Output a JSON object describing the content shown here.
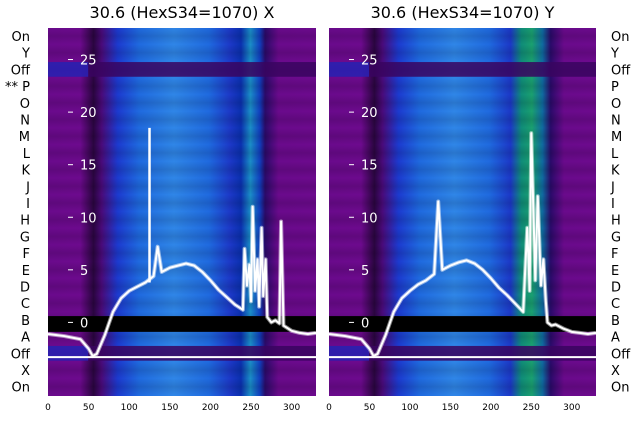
{
  "chart_data": [
    {
      "type": "heatmap",
      "title": "30.6 (HexS34=1070) X",
      "xlim": [
        0,
        330
      ],
      "ylim": [
        -7,
        28
      ],
      "x_ticks": [
        0,
        50,
        100,
        150,
        200,
        250,
        300
      ],
      "y_ticks": [
        0,
        5,
        10,
        15,
        20,
        25
      ],
      "y_tick_side": "left",
      "row_labels": [
        "On",
        "Y",
        "Off",
        "** P",
        "O",
        "N",
        "M",
        "L",
        "K",
        "J",
        "I",
        "H",
        "G",
        "F",
        "E",
        "D",
        "C",
        "B",
        "A",
        "Off",
        "X",
        "On"
      ],
      "row_label_side": "left",
      "trace": {
        "x": [
          0,
          20,
          40,
          50,
          55,
          60,
          70,
          80,
          90,
          100,
          110,
          120,
          130,
          135,
          140,
          150,
          160,
          170,
          180,
          190,
          200,
          210,
          220,
          230,
          240,
          242,
          245,
          248,
          250,
          252,
          255,
          258,
          260,
          263,
          265,
          268,
          270,
          275,
          280,
          285,
          287,
          290,
          300,
          310,
          320,
          330
        ],
        "y": [
          -1.1,
          -1.3,
          -1.6,
          -2.5,
          -3.2,
          -3.0,
          -1.2,
          1.0,
          2.3,
          3.0,
          3.4,
          3.8,
          4.4,
          7.2,
          4.8,
          5.2,
          5.4,
          5.6,
          5.4,
          4.8,
          4.0,
          3.1,
          2.4,
          1.7,
          1.2,
          7.0,
          3.5,
          5.5,
          2.0,
          11.0,
          3.0,
          6.0,
          1.5,
          9.0,
          2.5,
          6.0,
          0.5,
          0.0,
          0.2,
          -0.1,
          9.6,
          -0.3,
          -0.8,
          -1.0,
          -1.1,
          -1.0
        ]
      },
      "annotations": [
        {
          "x": 125,
          "y": 18.5
        }
      ]
    },
    {
      "type": "heatmap",
      "title": "30.6 (HexS34=1070) Y",
      "xlim": [
        0,
        330
      ],
      "ylim": [
        -7,
        28
      ],
      "x_ticks": [
        0,
        50,
        100,
        150,
        200,
        250,
        300
      ],
      "y_ticks": [
        0,
        5,
        10,
        15,
        20,
        25
      ],
      "y_tick_side": "left",
      "row_labels": [
        "On",
        "Y",
        "Off",
        "P",
        "O",
        "N",
        "M",
        "L",
        "K",
        "J",
        "I",
        "H",
        "G",
        "F",
        "E",
        "D",
        "C",
        "B",
        "A",
        "Off",
        "X",
        "On"
      ],
      "row_label_side": "right",
      "trace": {
        "x": [
          0,
          20,
          40,
          50,
          55,
          60,
          70,
          80,
          90,
          100,
          110,
          120,
          130,
          135,
          140,
          150,
          160,
          170,
          180,
          190,
          200,
          210,
          220,
          230,
          240,
          245,
          248,
          250,
          255,
          258,
          262,
          265,
          268,
          270,
          275,
          280,
          290,
          300,
          310,
          320,
          330
        ],
        "y": [
          -1.1,
          -1.3,
          -1.6,
          -2.5,
          -3.2,
          -3.0,
          -1.2,
          1.0,
          2.3,
          3.0,
          3.6,
          4.0,
          4.6,
          11.5,
          5.0,
          5.4,
          5.7,
          5.9,
          5.6,
          5.0,
          4.2,
          3.3,
          2.6,
          1.8,
          1.0,
          9.0,
          3.0,
          18.0,
          4.0,
          12.0,
          3.5,
          6.0,
          2.0,
          0.0,
          -0.3,
          -0.2,
          -0.6,
          -0.9,
          -1.0,
          -1.1,
          -1.0
        ]
      },
      "annotations": []
    }
  ]
}
